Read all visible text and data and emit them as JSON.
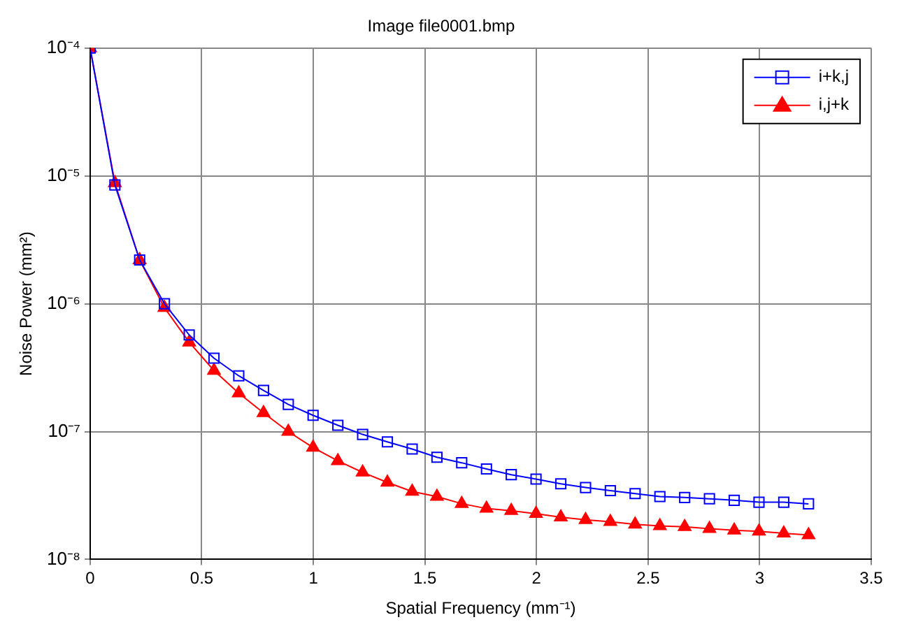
{
  "chart_data": {
    "type": "line",
    "title": "Image file0001.bmp",
    "xlabel": "Spatial Frequency (mm⁻¹)",
    "ylabel": "Noise Power (mm²)",
    "x": [
      0,
      0.111,
      0.222,
      0.333,
      0.444,
      0.555,
      0.666,
      0.777,
      0.888,
      0.999,
      1.11,
      1.221,
      1.332,
      1.443,
      1.554,
      1.665,
      1.776,
      1.887,
      1.998,
      2.109,
      2.22,
      2.331,
      2.442,
      2.553,
      2.664,
      2.775,
      2.886,
      2.997,
      3.108,
      3.219
    ],
    "series": [
      {
        "name": "i+k,j",
        "color": "#0000ff",
        "marker": "square",
        "values": [
          0.0001,
          8.5e-06,
          2.2e-06,
          1e-06,
          5.7e-07,
          3.75e-07,
          2.73e-07,
          2.1e-07,
          1.63e-07,
          1.34e-07,
          1.12e-07,
          9.5e-08,
          8.3e-08,
          7.3e-08,
          6.3e-08,
          5.7e-08,
          5.1e-08,
          4.6e-08,
          4.25e-08,
          3.9e-08,
          3.65e-08,
          3.45e-08,
          3.27e-08,
          3.1e-08,
          3.05e-08,
          2.98e-08,
          2.9e-08,
          2.8e-08,
          2.8e-08,
          2.72e-08
        ]
      },
      {
        "name": "i,j+k",
        "color": "#ff0000",
        "marker": "triangle",
        "values": [
          0.0001,
          8.8e-06,
          2.2e-06,
          9.3e-07,
          5e-07,
          3e-07,
          2e-07,
          1.4e-07,
          1e-07,
          7.5e-08,
          5.9e-08,
          4.8e-08,
          4e-08,
          3.4e-08,
          3.1e-08,
          2.73e-08,
          2.5e-08,
          2.4e-08,
          2.28e-08,
          2.14e-08,
          2.04e-08,
          1.97e-08,
          1.88e-08,
          1.83e-08,
          1.8e-08,
          1.74e-08,
          1.69e-08,
          1.66e-08,
          1.6e-08,
          1.55e-08
        ]
      }
    ],
    "xlim": [
      0,
      3.5
    ],
    "xticks": [
      0,
      0.5,
      1,
      1.5,
      2,
      2.5,
      3,
      3.5
    ],
    "ylim": [
      1e-08,
      0.0001
    ],
    "yticks": [
      {
        "value": 1e-08,
        "label": "10⁻⁸"
      },
      {
        "value": 1e-07,
        "label": "10⁻⁷"
      },
      {
        "value": 1e-06,
        "label": "10⁻⁶"
      },
      {
        "value": 1e-05,
        "label": "10⁻⁵"
      },
      {
        "value": 0.0001,
        "label": "10⁻⁴"
      }
    ],
    "log": "y",
    "grid": true,
    "legend": "top right",
    "line_style": "solid"
  }
}
